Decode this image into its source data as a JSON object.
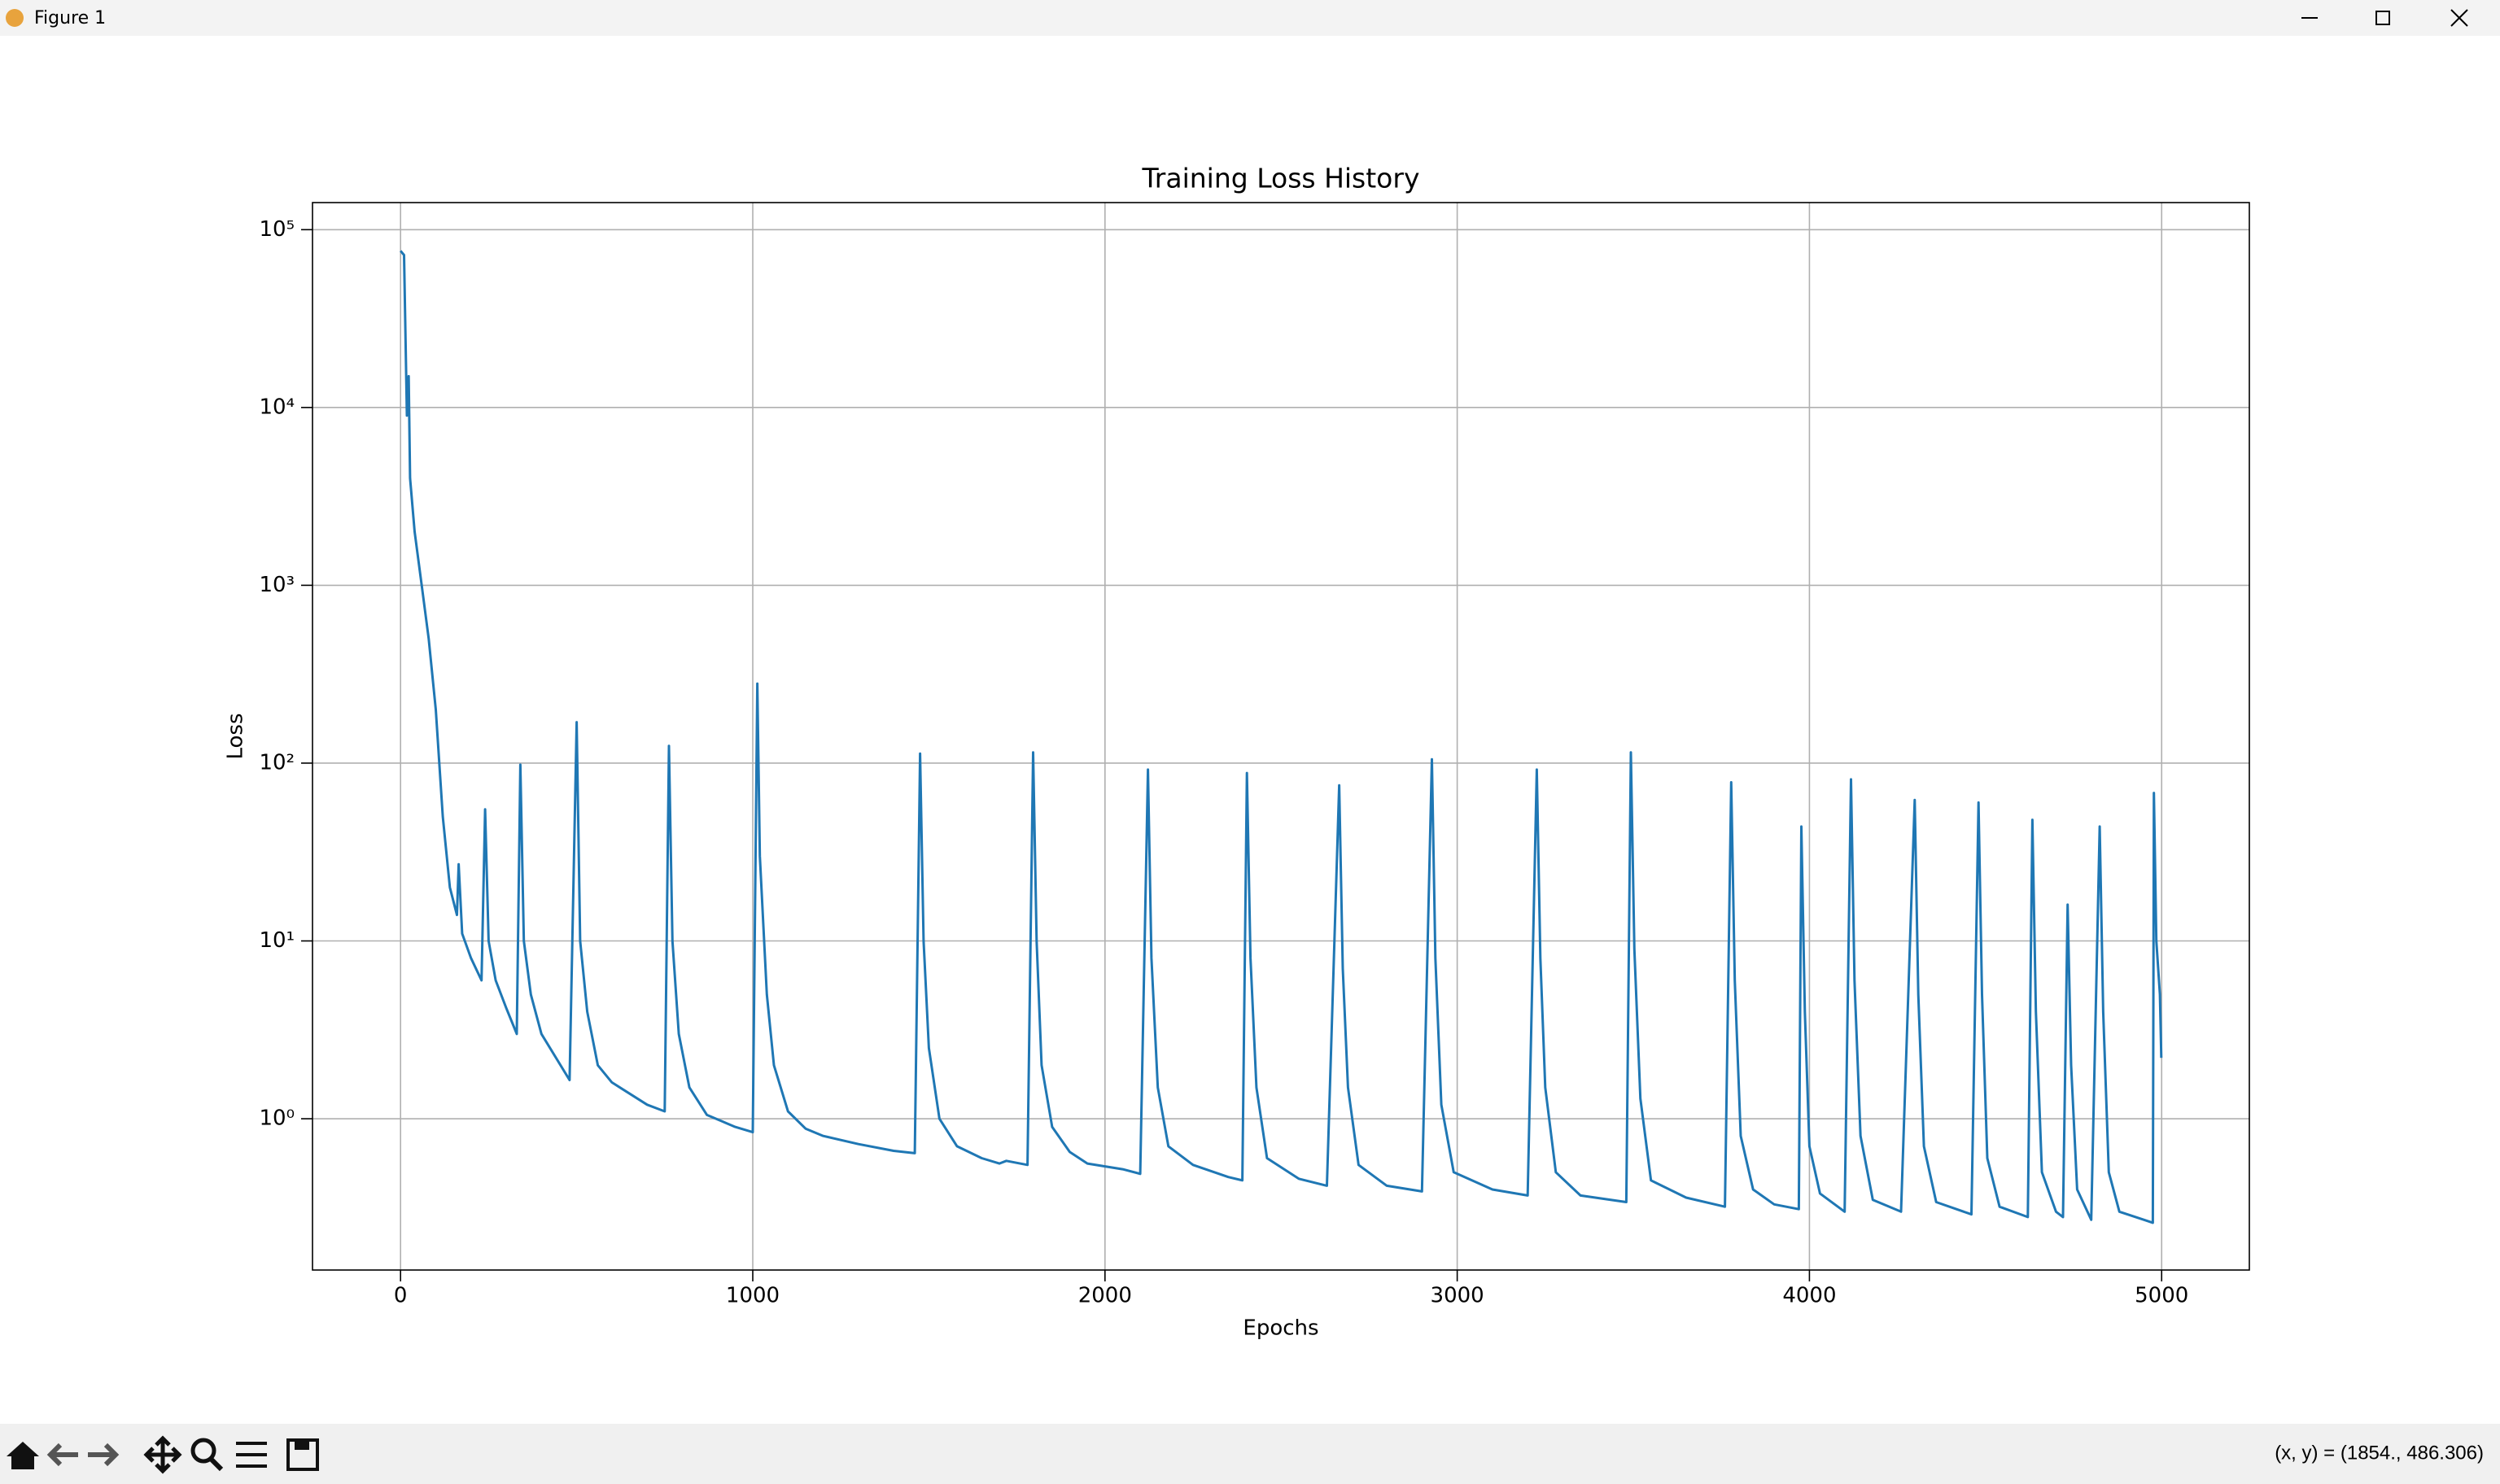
{
  "window": {
    "title": "Figure 1"
  },
  "status": {
    "coords": "(x, y) = (1854., 486.306)"
  },
  "chart_data": {
    "type": "line",
    "title": "Training Loss History",
    "xlabel": "Epochs",
    "ylabel": "Loss",
    "color": "#1f77b4",
    "log_scale": true,
    "grid": true,
    "xlim": [
      -250,
      5249
    ],
    "ylim": [
      0.141,
      142000
    ],
    "xticks": [
      0,
      1000,
      2000,
      3000,
      4000,
      5000
    ],
    "yticks": [
      {
        "value": 1,
        "label": "10⁰"
      },
      {
        "value": 10,
        "label": "10¹"
      },
      {
        "value": 100,
        "label": "10²"
      },
      {
        "value": 1000,
        "label": "10³"
      },
      {
        "value": 10000,
        "label": "10⁴"
      },
      {
        "value": 100000,
        "label": "10⁵"
      }
    ],
    "x": [
      0,
      10,
      18,
      23,
      27,
      40,
      60,
      80,
      100,
      120,
      140,
      160,
      165,
      175,
      200,
      230,
      240,
      250,
      270,
      300,
      330,
      340,
      350,
      370,
      400,
      480,
      500,
      510,
      530,
      560,
      600,
      700,
      750,
      762,
      772,
      790,
      820,
      870,
      950,
      1000,
      1013,
      1020,
      1040,
      1060,
      1100,
      1150,
      1200,
      1300,
      1400,
      1460,
      1475,
      1485,
      1500,
      1530,
      1580,
      1650,
      1700,
      1720,
      1780,
      1796,
      1806,
      1820,
      1850,
      1900,
      1950,
      2050,
      2100,
      2122,
      2132,
      2150,
      2180,
      2250,
      2350,
      2390,
      2403,
      2413,
      2430,
      2460,
      2550,
      2630,
      2665,
      2675,
      2690,
      2720,
      2800,
      2900,
      2928,
      2938,
      2955,
      2990,
      3100,
      3200,
      3226,
      3236,
      3250,
      3280,
      3350,
      3480,
      3493,
      3503,
      3520,
      3550,
      3650,
      3760,
      3778,
      3788,
      3805,
      3840,
      3900,
      3970,
      3977,
      3987,
      4000,
      4030,
      4100,
      4118,
      4128,
      4145,
      4180,
      4260,
      4299,
      4309,
      4325,
      4360,
      4460,
      4480,
      4490,
      4505,
      4540,
      4620,
      4633,
      4643,
      4660,
      4700,
      4720,
      4733,
      4743,
      4760,
      4800,
      4824,
      4834,
      4850,
      4880,
      4950,
      4975,
      4978,
      4985,
      4995,
      4999
    ],
    "values": [
      76000,
      72000,
      9000,
      15000,
      4000,
      2000,
      1000,
      500,
      200,
      50,
      20,
      14,
      27,
      11,
      8,
      6,
      55,
      10,
      6,
      4.2,
      3,
      98,
      10,
      5,
      3,
      1.65,
      170,
      10,
      4,
      2,
      1.6,
      1.2,
      1.1,
      125,
      10,
      3,
      1.5,
      1.05,
      0.9,
      0.84,
      280,
      30,
      5,
      2,
      1.1,
      0.88,
      0.8,
      0.72,
      0.66,
      0.64,
      113,
      10,
      2.5,
      1,
      0.7,
      0.6,
      0.56,
      0.58,
      0.55,
      115,
      10,
      2,
      0.9,
      0.65,
      0.56,
      0.52,
      0.49,
      92,
      8,
      1.5,
      0.7,
      0.55,
      0.47,
      0.45,
      88,
      8,
      1.5,
      0.6,
      0.46,
      0.42,
      75,
      7,
      1.5,
      0.55,
      0.42,
      0.39,
      105,
      8,
      1.2,
      0.5,
      0.4,
      0.37,
      92,
      8,
      1.5,
      0.5,
      0.37,
      0.34,
      115,
      9,
      1.3,
      0.45,
      0.36,
      0.32,
      78,
      6,
      0.8,
      0.4,
      0.33,
      0.31,
      44,
      4,
      0.7,
      0.38,
      0.3,
      81,
      6,
      0.8,
      0.35,
      0.3,
      62,
      5,
      0.7,
      0.34,
      0.29,
      60,
      5,
      0.6,
      0.32,
      0.28,
      48,
      4,
      0.5,
      0.3,
      0.28,
      16,
      2,
      0.4,
      0.27,
      44,
      4,
      0.5,
      0.3,
      0.27,
      0.26,
      68,
      10,
      5,
      2.2
    ]
  }
}
